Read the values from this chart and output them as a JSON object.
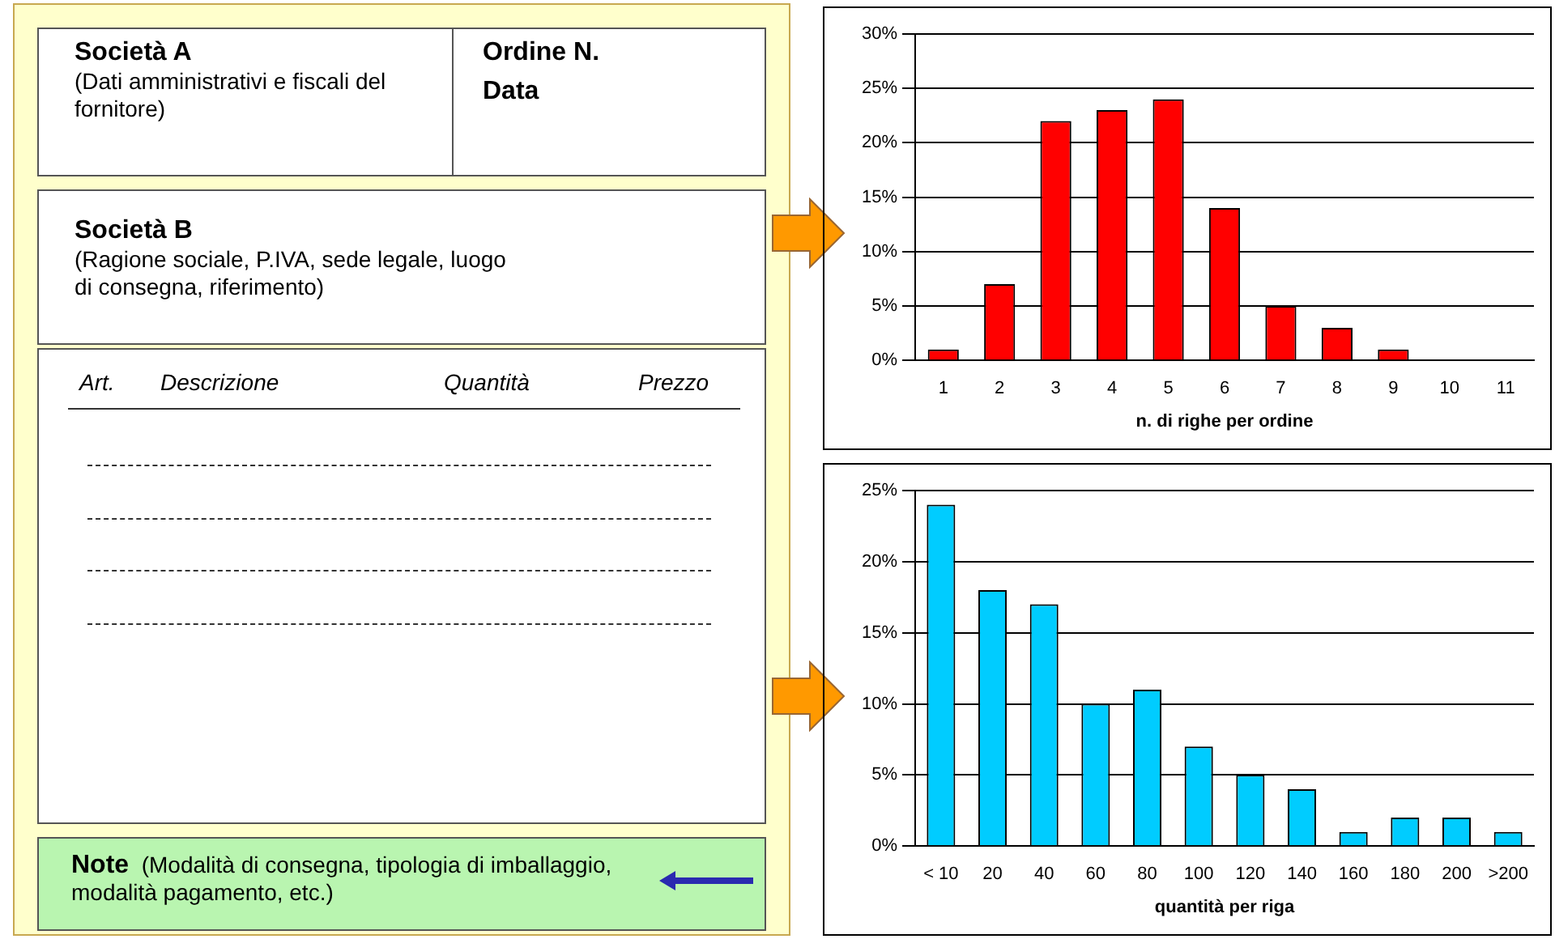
{
  "chart_data": [
    {
      "type": "other",
      "annotations": [
        "Società A",
        "(Dati amministrativi e fiscali del fornitore)",
        "Ordine N.",
        "Data",
        "Società B",
        "(Ragione sociale, P.IVA, sede legale, luogo di consegna, riferimento)",
        "Art.",
        "Descrizione",
        "Quantità",
        "Prezzo",
        "Note",
        "(Modalità di consegna, tipologia di imballaggio, modalità pagamento,  etc.)"
      ]
    },
    {
      "type": "bar",
      "xlabel": "n. di righe per ordine",
      "categories": [
        "1",
        "2",
        "3",
        "4",
        "5",
        "6",
        "7",
        "8",
        "9",
        "10",
        "11"
      ],
      "values": [
        1,
        7,
        22,
        23,
        24,
        14,
        5,
        3,
        1,
        0,
        0
      ],
      "color": "#ff0000",
      "ylim": [
        0,
        30
      ],
      "yticks": [
        {
          "value": 0,
          "label": "0%"
        },
        {
          "value": 5,
          "label": "5%"
        },
        {
          "value": 10,
          "label": "10%"
        },
        {
          "value": 15,
          "label": "15%"
        },
        {
          "value": 20,
          "label": "20%"
        },
        {
          "value": 25,
          "label": "25%"
        },
        {
          "value": 30,
          "label": "30%"
        }
      ],
      "grid": "y"
    },
    {
      "type": "bar",
      "xlabel": "quantità per riga",
      "categories": [
        "< 10",
        "20",
        "40",
        "60",
        "80",
        "100",
        "120",
        "140",
        "160",
        "180",
        "200",
        ">200"
      ],
      "values": [
        24,
        18,
        17,
        10,
        11,
        7,
        5,
        4,
        1,
        2,
        2,
        1
      ],
      "color": "#00ccff",
      "ylim": [
        0,
        25
      ],
      "yticks": [
        {
          "value": 0,
          "label": "0%"
        },
        {
          "value": 5,
          "label": "5%"
        },
        {
          "value": 10,
          "label": "10%"
        },
        {
          "value": 15,
          "label": "15%"
        },
        {
          "value": 20,
          "label": "20%"
        },
        {
          "value": 25,
          "label": "25%"
        }
      ],
      "grid": "y"
    }
  ]
}
